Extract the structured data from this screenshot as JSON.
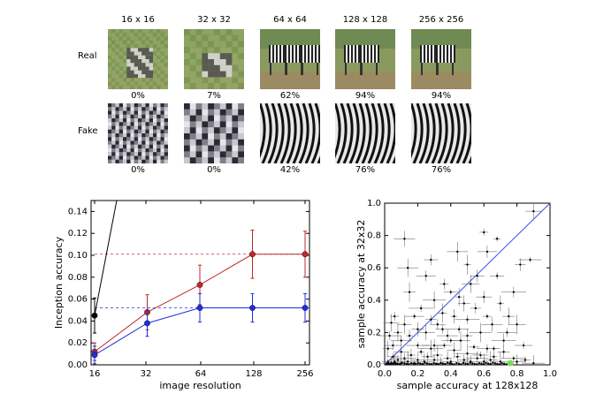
{
  "figure_grid": {
    "column_headers": [
      "16 x 16",
      "32 x 32",
      "64 x 64",
      "128 x 128",
      "256 x 256"
    ],
    "rows": [
      {
        "label": "Real",
        "accuracies": [
          "0%",
          "7%",
          "62%",
          "94%",
          "94%"
        ]
      },
      {
        "label": "Fake",
        "accuracies": [
          "0%",
          "0%",
          "42%",
          "76%",
          "76%"
        ]
      }
    ]
  },
  "chart_data": [
    {
      "type": "line",
      "title": "",
      "xlabel": "image resolution",
      "ylabel": "Inception accuracy",
      "x_ticks": [
        "16",
        "32",
        "64",
        "128",
        "256"
      ],
      "y_ticks": [
        "0.00",
        "0.02",
        "0.04",
        "0.06",
        "0.08",
        "0.10",
        "0.12",
        "0.14"
      ],
      "ylim": [
        0,
        0.15
      ],
      "grid": false,
      "colors": {
        "red": "#c0282b",
        "blue": "#1f2ee0",
        "black": "#000000"
      },
      "series": [
        {
          "color": "red",
          "x": [
            16,
            32,
            64,
            128,
            256
          ],
          "values": [
            0.012,
            0.048,
            0.073,
            0.101,
            0.101
          ],
          "err": [
            0.008,
            0.016,
            0.018,
            0.022,
            0.021
          ],
          "dashed_reference": 0.101
        },
        {
          "color": "blue",
          "x": [
            16,
            32,
            64,
            128,
            256
          ],
          "values": [
            0.009,
            0.038,
            0.052,
            0.052,
            0.052
          ],
          "err": [
            0.008,
            0.012,
            0.013,
            0.013,
            0.013
          ],
          "dashed_reference": 0.052
        },
        {
          "color": "black",
          "x": [
            16,
            22
          ],
          "values": [
            0.045,
            0.16
          ],
          "err": [
            0.016,
            0
          ]
        }
      ]
    },
    {
      "type": "scatter",
      "title": "",
      "xlabel": "sample accuracy at 128x128",
      "ylabel": "sample accuracy at 32x32",
      "x_ticks": [
        "0.0",
        "0.2",
        "0.4",
        "0.6",
        "0.8",
        "1.0"
      ],
      "y_ticks": [
        "0.0",
        "0.2",
        "0.4",
        "0.6",
        "0.8",
        "1.0"
      ],
      "xlim": [
        0,
        1
      ],
      "ylim": [
        0,
        1
      ],
      "diagonal_color": "#3a4ee8",
      "highlight_color": "#7ed957",
      "highlight_point": [
        0.76,
        0.0
      ],
      "points": [
        [
          0.02,
          0.02
        ],
        [
          0.04,
          0.01
        ],
        [
          0.05,
          0.05
        ],
        [
          0.06,
          0.02
        ],
        [
          0.08,
          0.03
        ],
        [
          0.1,
          0.01
        ],
        [
          0.12,
          0.04
        ],
        [
          0.14,
          0.02
        ],
        [
          0.16,
          0.06
        ],
        [
          0.18,
          0.01
        ],
        [
          0.2,
          0.03
        ],
        [
          0.22,
          0.08
        ],
        [
          0.24,
          0.02
        ],
        [
          0.26,
          0.05
        ],
        [
          0.28,
          0.1
        ],
        [
          0.3,
          0.03
        ],
        [
          0.32,
          0.06
        ],
        [
          0.34,
          0.01
        ],
        [
          0.36,
          0.12
        ],
        [
          0.38,
          0.04
        ],
        [
          0.4,
          0.02
        ],
        [
          0.42,
          0.09
        ],
        [
          0.44,
          0.05
        ],
        [
          0.46,
          0.15
        ],
        [
          0.48,
          0.03
        ],
        [
          0.5,
          0.07
        ],
        [
          0.52,
          0.02
        ],
        [
          0.54,
          0.11
        ],
        [
          0.56,
          0.04
        ],
        [
          0.58,
          0.06
        ],
        [
          0.6,
          0.02
        ],
        [
          0.62,
          0.1
        ],
        [
          0.64,
          0.03
        ],
        [
          0.66,
          0.05
        ],
        [
          0.7,
          0.02
        ],
        [
          0.72,
          0.08
        ],
        [
          0.78,
          0.04
        ],
        [
          0.8,
          0.02
        ],
        [
          0.85,
          0.03
        ],
        [
          0.9,
          0.01
        ],
        [
          0.05,
          0.12
        ],
        [
          0.08,
          0.2
        ],
        [
          0.1,
          0.15
        ],
        [
          0.12,
          0.25
        ],
        [
          0.15,
          0.18
        ],
        [
          0.18,
          0.3
        ],
        [
          0.2,
          0.22
        ],
        [
          0.22,
          0.35
        ],
        [
          0.25,
          0.2
        ],
        [
          0.28,
          0.28
        ],
        [
          0.3,
          0.4
        ],
        [
          0.32,
          0.25
        ],
        [
          0.35,
          0.32
        ],
        [
          0.38,
          0.18
        ],
        [
          0.4,
          0.45
        ],
        [
          0.42,
          0.3
        ],
        [
          0.45,
          0.22
        ],
        [
          0.48,
          0.38
        ],
        [
          0.5,
          0.28
        ],
        [
          0.52,
          0.5
        ],
        [
          0.55,
          0.35
        ],
        [
          0.58,
          0.2
        ],
        [
          0.6,
          0.42
        ],
        [
          0.62,
          0.3
        ],
        [
          0.65,
          0.25
        ],
        [
          0.68,
          0.55
        ],
        [
          0.7,
          0.38
        ],
        [
          0.74,
          0.2
        ],
        [
          0.75,
          0.3
        ],
        [
          0.78,
          0.45
        ],
        [
          0.8,
          0.25
        ],
        [
          0.82,
          0.62
        ],
        [
          0.88,
          0.65
        ],
        [
          0.9,
          0.95
        ],
        [
          0.6,
          0.82
        ],
        [
          0.12,
          0.78
        ],
        [
          0.35,
          0.22
        ],
        [
          0.45,
          0.42
        ],
        [
          0.25,
          0.55
        ],
        [
          0.15,
          0.45
        ],
        [
          0.3,
          0.12
        ],
        [
          0.4,
          0.15
        ],
        [
          0.5,
          0.18
        ],
        [
          0.2,
          0.12
        ],
        [
          0.1,
          0.08
        ],
        [
          0.06,
          0.3
        ],
        [
          0.14,
          0.6
        ],
        [
          0.28,
          0.65
        ],
        [
          0.5,
          0.62
        ],
        [
          0.62,
          0.7
        ],
        [
          0.66,
          0.1
        ],
        [
          0.72,
          0.15
        ],
        [
          0.84,
          0.12
        ],
        [
          0.02,
          0.1
        ],
        [
          0.03,
          0.18
        ],
        [
          0.04,
          0.26
        ],
        [
          0.36,
          0.5
        ],
        [
          0.44,
          0.7
        ],
        [
          0.56,
          0.55
        ],
        [
          0.68,
          0.78
        ]
      ]
    }
  ]
}
